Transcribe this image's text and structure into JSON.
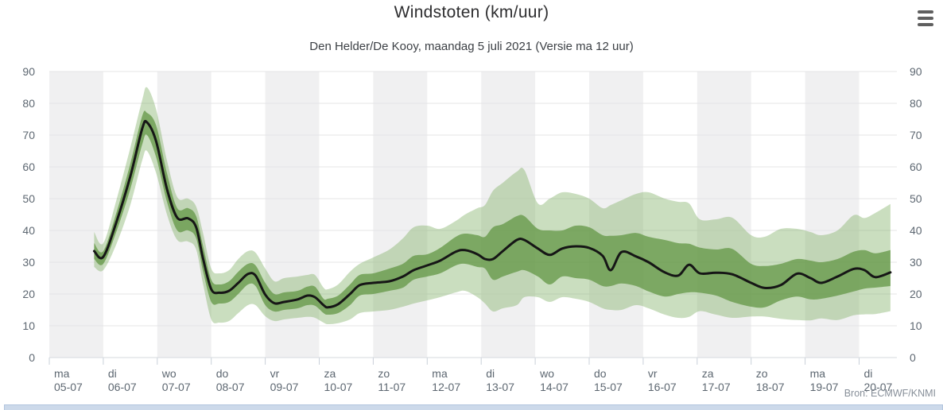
{
  "header": {
    "title": "Windstoten (km/uur)",
    "subtitle": "Den Helder/De Kooy, maandag 5 juli 2021 (Versie ma 12 uur)"
  },
  "footer": {
    "source": "Bron: ECMWF/KNMI"
  },
  "colors": {
    "outer_band": "rgba(123,172,95,0.40)",
    "inner_band": "rgba(98,150,68,0.75)",
    "median_line": "#161616",
    "day_band_gray": "#f0f0f1",
    "gridline": "#e4e4e6",
    "axis_line": "#d6dade",
    "tick_mark": "#c9d0d9",
    "axis_text": "#5d6771",
    "menu_icon": "#5f5f5f",
    "scrollbar": "#ccd9ea"
  },
  "chart_data": {
    "type": "area",
    "title": "Windstoten (km/uur)",
    "subtitle": "Den Helder/De Kooy, maandag 5 juli 2021 (Versie ma 12 uur)",
    "unit": "km/uur",
    "xlabel": "",
    "ylabel": "",
    "ylim": [
      0,
      90
    ],
    "yticks": [
      0,
      10,
      20,
      30,
      40,
      50,
      60,
      70,
      80,
      90
    ],
    "grid": "horizontal",
    "x_unit": "days since ma 05-07 00:00",
    "x_days_total": 15.7,
    "day_labels": [
      {
        "weekday": "ma",
        "date": "05-07"
      },
      {
        "weekday": "di",
        "date": "06-07"
      },
      {
        "weekday": "wo",
        "date": "07-07"
      },
      {
        "weekday": "do",
        "date": "08-07"
      },
      {
        "weekday": "vr",
        "date": "09-07"
      },
      {
        "weekday": "za",
        "date": "10-07"
      },
      {
        "weekday": "zo",
        "date": "11-07"
      },
      {
        "weekday": "ma",
        "date": "12-07"
      },
      {
        "weekday": "di",
        "date": "13-07"
      },
      {
        "weekday": "wo",
        "date": "14-07"
      },
      {
        "weekday": "do",
        "date": "15-07"
      },
      {
        "weekday": "vr",
        "date": "16-07"
      },
      {
        "weekday": "za",
        "date": "17-07"
      },
      {
        "weekday": "zo",
        "date": "18-07"
      },
      {
        "weekday": "ma",
        "date": "19-07"
      },
      {
        "weekday": "di",
        "date": "20-07"
      }
    ],
    "series_names": [
      "outer_band_low",
      "inner_band_low",
      "median",
      "inner_band_high",
      "outer_band_high"
    ],
    "t": [
      0.83,
      1.0,
      1.25,
      1.5,
      1.72,
      1.81,
      1.98,
      2.18,
      2.37,
      2.57,
      2.72,
      2.85,
      3.0,
      3.15,
      3.33,
      3.5,
      3.68,
      3.82,
      4.0,
      4.17,
      4.35,
      4.6,
      4.78,
      4.92,
      5.08,
      5.16,
      5.35,
      5.57,
      5.75,
      6.0,
      6.3,
      6.55,
      6.75,
      7.0,
      7.24,
      7.53,
      7.7,
      7.93,
      8.07,
      8.22,
      8.4,
      8.66,
      8.8,
      9.05,
      9.27,
      9.5,
      9.75,
      10.0,
      10.25,
      10.4,
      10.6,
      10.87,
      11.1,
      11.4,
      11.65,
      11.85,
      12.05,
      12.35,
      12.65,
      13.0,
      13.25,
      13.55,
      13.85,
      14.1,
      14.3,
      14.6,
      14.9,
      15.1,
      15.3,
      15.58
    ],
    "median": [
      33.5,
      31.7,
      43.0,
      57.0,
      72.0,
      74.0,
      68.0,
      53.0,
      44.0,
      43.8,
      41.0,
      31.0,
      21.5,
      20.4,
      21.0,
      23.5,
      26.3,
      25.8,
      19.8,
      17.1,
      17.5,
      18.3,
      19.5,
      19.0,
      16.5,
      15.8,
      16.8,
      20.0,
      22.8,
      23.5,
      24.0,
      25.5,
      27.5,
      29.0,
      30.5,
      33.3,
      33.8,
      32.5,
      31.0,
      31.0,
      33.5,
      37.0,
      37.0,
      34.3,
      32.3,
      34.3,
      35.0,
      34.5,
      32.0,
      27.5,
      33.2,
      31.8,
      30.0,
      26.8,
      25.8,
      29.2,
      26.5,
      26.7,
      26.2,
      23.5,
      21.9,
      22.8,
      26.4,
      25.0,
      23.5,
      25.5,
      27.9,
      27.5,
      25.3,
      26.8
    ],
    "inner_band_low": [
      31.0,
      29.5,
      40.0,
      53.0,
      67.0,
      70.0,
      63.0,
      49.0,
      40.0,
      40.0,
      37.5,
      27.0,
      17.5,
      17.0,
      17.5,
      20.0,
      23.0,
      22.5,
      16.5,
      14.5,
      15.0,
      15.5,
      16.5,
      16.3,
      14.0,
      13.5,
      14.0,
      16.5,
      19.5,
      20.0,
      21.0,
      22.0,
      24.5,
      25.5,
      26.5,
      29.0,
      29.5,
      28.5,
      28.0,
      24.5,
      25.5,
      27.0,
      27.5,
      25.5,
      23.0,
      25.5,
      25.0,
      24.5,
      22.5,
      22.5,
      23.3,
      22.5,
      20.8,
      19.2,
      20.0,
      20.5,
      20.4,
      19.5,
      17.5,
      16.0,
      15.8,
      18.0,
      19.2,
      18.3,
      18.5,
      19.5,
      20.8,
      21.7,
      22.0,
      22.5
    ],
    "inner_band_high": [
      36.0,
      33.5,
      46.0,
      61.0,
      76.0,
      77.0,
      73.0,
      58.0,
      47.0,
      47.0,
      44.5,
      35.0,
      24.5,
      23.0,
      24.0,
      27.0,
      29.5,
      29.0,
      23.5,
      20.0,
      20.5,
      21.0,
      22.3,
      22.3,
      18.5,
      18.5,
      19.5,
      23.0,
      26.0,
      26.5,
      28.0,
      29.5,
      32.0,
      32.5,
      34.5,
      38.0,
      39.0,
      38.5,
      38.0,
      41.0,
      42.0,
      44.5,
      44.5,
      40.5,
      40.0,
      40.0,
      41.5,
      41.0,
      38.5,
      38.3,
      38.5,
      39.2,
      38.0,
      37.0,
      36.0,
      35.8,
      34.6,
      34.0,
      34.2,
      29.5,
      28.8,
      29.5,
      31.0,
      30.5,
      30.0,
      31.0,
      33.3,
      33.8,
      32.8,
      33.8
    ],
    "outer_band_low": [
      28.5,
      27.5,
      36.0,
      48.0,
      62.0,
      65.0,
      58.0,
      45.0,
      37.0,
      36.5,
      34.0,
      23.0,
      12.0,
      11.0,
      11.5,
      14.0,
      16.5,
      16.5,
      13.0,
      11.5,
      12.0,
      12.5,
      12.8,
      12.5,
      11.0,
      10.5,
      10.8,
      12.0,
      14.0,
      14.5,
      15.0,
      16.0,
      17.0,
      18.0,
      19.0,
      20.5,
      21.0,
      19.0,
      17.0,
      14.5,
      15.5,
      16.5,
      19.0,
      19.0,
      17.5,
      19.0,
      18.5,
      17.5,
      15.5,
      15.0,
      15.0,
      16.5,
      15.5,
      13.5,
      12.5,
      12.8,
      14.6,
      13.5,
      12.5,
      12.9,
      12.9,
      12.2,
      11.8,
      11.7,
      12.3,
      11.8,
      13.3,
      13.6,
      13.7,
      14.6
    ],
    "outer_band_high": [
      39.5,
      36.0,
      50.0,
      66.0,
      81.0,
      85.0,
      78.0,
      62.0,
      50.5,
      50.0,
      47.5,
      39.0,
      28.0,
      26.5,
      27.5,
      31.0,
      33.5,
      33.0,
      28.0,
      24.0,
      25.0,
      25.5,
      26.0,
      26.0,
      22.0,
      21.5,
      23.0,
      27.0,
      29.5,
      31.5,
      34.0,
      37.5,
      41.0,
      41.5,
      40.5,
      43.0,
      45.0,
      47.0,
      48.0,
      52.5,
      55.0,
      58.5,
      59.0,
      48.5,
      50.0,
      52.0,
      51.5,
      50.0,
      47.0,
      48.0,
      49.5,
      51.5,
      52.0,
      50.0,
      49.0,
      48.5,
      43.5,
      43.5,
      44.0,
      38.5,
      38.0,
      40.5,
      40.5,
      39.5,
      38.5,
      40.0,
      44.8,
      43.9,
      45.5,
      48.3
    ]
  }
}
